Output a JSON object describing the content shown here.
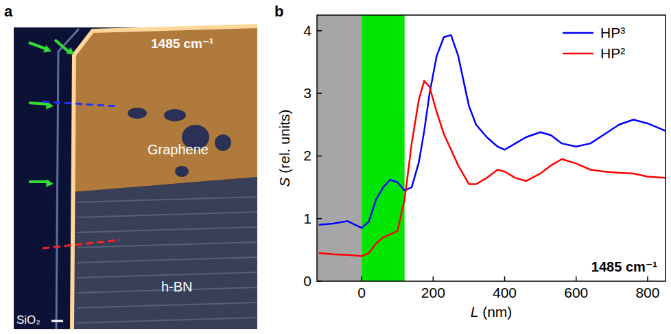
{
  "image_panel": {
    "panel_label": "a",
    "title": "1485 cm⁻¹",
    "labels": {
      "graphene": "Graphene",
      "hbn": "h-BN",
      "substrate": "SiO₂"
    }
  },
  "chart_data": {
    "type": "line",
    "panel_label": "b",
    "x_label": "L (nm)",
    "y_label": "S (rel. units)",
    "annotations": [
      "1485 cm⁻¹"
    ],
    "xlim": [
      -125,
      850
    ],
    "xticks": [
      0,
      200,
      400,
      600,
      800
    ],
    "ylim": [
      0,
      4.25
    ],
    "yticks": [
      0,
      1,
      2,
      3,
      4
    ],
    "grid": false,
    "legend": "upper right",
    "shaded_regions": [
      {
        "from": -125,
        "to": 0,
        "color": "#a6a6a6"
      },
      {
        "from": 0,
        "to": 120,
        "color": "#00e600"
      }
    ],
    "x": [
      -120,
      -80,
      -40,
      0,
      20,
      40,
      60,
      80,
      100,
      120,
      140,
      160,
      175,
      190,
      210,
      230,
      250,
      270,
      300,
      320,
      350,
      380,
      400,
      430,
      460,
      500,
      530,
      560,
      600,
      640,
      680,
      720,
      760,
      800,
      850
    ],
    "series": [
      {
        "name": "HP³",
        "color": "#0000ff",
        "values": [
          0.9,
          0.92,
          0.96,
          0.85,
          0.95,
          1.3,
          1.5,
          1.62,
          1.58,
          1.45,
          1.5,
          1.9,
          2.4,
          3.0,
          3.6,
          3.9,
          3.93,
          3.6,
          2.8,
          2.5,
          2.3,
          2.15,
          2.1,
          2.2,
          2.3,
          2.38,
          2.33,
          2.2,
          2.15,
          2.2,
          2.35,
          2.5,
          2.58,
          2.52,
          2.4
        ]
      },
      {
        "name": "HP²",
        "color": "#ff0000",
        "values": [
          0.45,
          0.43,
          0.42,
          0.4,
          0.45,
          0.6,
          0.7,
          0.75,
          0.8,
          1.3,
          2.2,
          2.9,
          3.2,
          3.1,
          2.7,
          2.35,
          2.1,
          1.85,
          1.55,
          1.55,
          1.65,
          1.78,
          1.75,
          1.65,
          1.6,
          1.72,
          1.85,
          1.95,
          1.88,
          1.78,
          1.75,
          1.73,
          1.72,
          1.67,
          1.65
        ]
      }
    ]
  }
}
